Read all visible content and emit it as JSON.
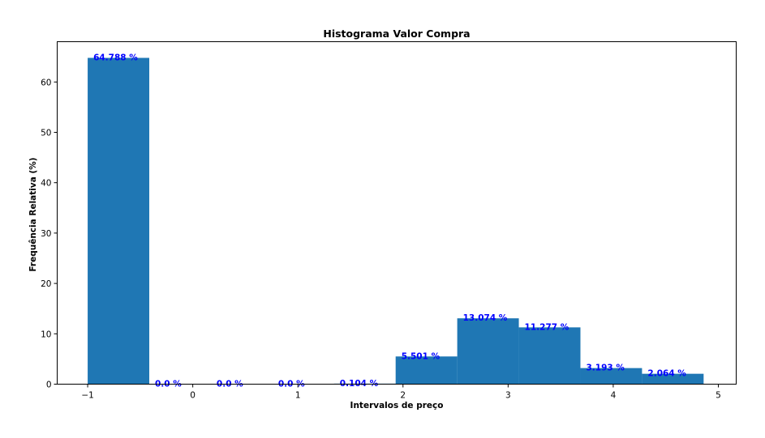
{
  "chart_data": {
    "type": "bar",
    "title": "Histograma Valor Compra",
    "xlabel": "Intervalos de preço",
    "ylabel": "Frequência Relativa (%)",
    "xlim": [
      -1.29,
      5.17
    ],
    "ylim": [
      0,
      68
    ],
    "xticks": [
      -1,
      0,
      1,
      2,
      3,
      4,
      5
    ],
    "xtick_labels": [
      "−1",
      "0",
      "1",
      "2",
      "3",
      "4",
      "5"
    ],
    "yticks": [
      0,
      10,
      20,
      30,
      40,
      50,
      60
    ],
    "ytick_labels": [
      "0",
      "10",
      "20",
      "30",
      "40",
      "50",
      "60"
    ],
    "bin_edges": [
      -1.0,
      -0.414,
      0.172,
      0.758,
      1.344,
      1.93,
      2.516,
      3.102,
      3.688,
      4.274,
      4.86
    ],
    "values": [
      64.788,
      0.0,
      0.0,
      0.0,
      0.104,
      5.501,
      13.074,
      11.277,
      3.193,
      2.064
    ],
    "labels": [
      "64.788 %",
      "0.0 %",
      "0.0 %",
      "0.0 %",
      "0.104 %",
      "5.501 %",
      "13.074 %",
      "11.277 %",
      "3.193 %",
      "2.064 %"
    ],
    "grid": false,
    "colors": {
      "bar": "#1f77b4",
      "label": "#0000ff"
    }
  }
}
